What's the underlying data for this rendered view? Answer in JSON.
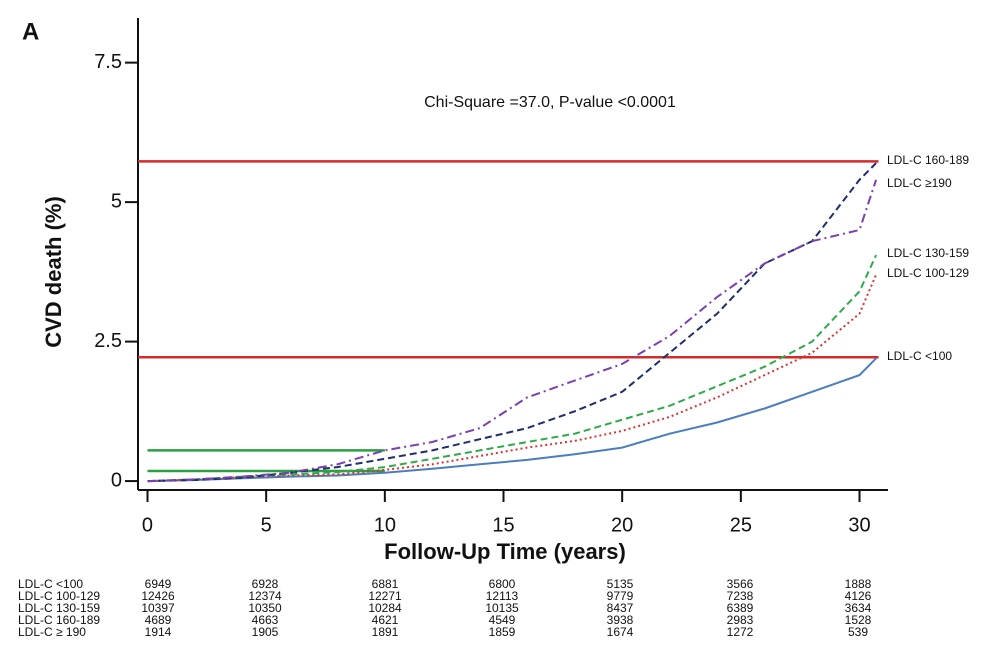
{
  "chart_data": {
    "type": "line",
    "panel_label": "A",
    "annotation": "Chi-Square =37.0, P-value <0.0001",
    "x_label": "Follow-Up Time (years)",
    "y_label": "CVD death (%)",
    "xlim": [
      -0.4,
      31.2
    ],
    "ylim": [
      -0.16,
      8.3
    ],
    "xticks": [
      0,
      5,
      10,
      15,
      20,
      25,
      30
    ],
    "yticks": [
      0,
      2.5,
      5,
      7.5
    ],
    "x": [
      0,
      2,
      4,
      6,
      8,
      10,
      12,
      14,
      16,
      18,
      20,
      22,
      24,
      26,
      28,
      30,
      30.7
    ],
    "series": [
      {
        "name": "LDL-C  <100",
        "color": "#4a7ebf",
        "style": "solid",
        "values": [
          0,
          0.02,
          0.05,
          0.08,
          0.1,
          0.15,
          0.22,
          0.3,
          0.38,
          0.48,
          0.6,
          0.85,
          1.05,
          1.3,
          1.6,
          1.9,
          2.2
        ]
      },
      {
        "name": "LDL-C  100-129",
        "color": "#e03030",
        "style": "dotted",
        "values": [
          0,
          0.03,
          0.07,
          0.1,
          0.12,
          0.2,
          0.3,
          0.45,
          0.6,
          0.72,
          0.9,
          1.15,
          1.5,
          1.9,
          2.3,
          3.0,
          3.7
        ]
      },
      {
        "name": "LDL-C  130-159",
        "color": "#2faa4a",
        "style": "dashed",
        "values": [
          0,
          0.03,
          0.08,
          0.12,
          0.16,
          0.25,
          0.4,
          0.55,
          0.7,
          0.85,
          1.1,
          1.35,
          1.7,
          2.05,
          2.5,
          3.4,
          4.05
        ]
      },
      {
        "name": "LDL-C  160-189",
        "color": "#1f2d6b",
        "style": "dashed",
        "values": [
          0,
          0.02,
          0.06,
          0.15,
          0.25,
          0.4,
          0.55,
          0.75,
          0.95,
          1.25,
          1.6,
          2.3,
          3.0,
          3.9,
          4.3,
          5.4,
          5.7
        ]
      },
      {
        "name": "LDL-C  ≥190",
        "color": "#7a3fb0",
        "style": "dashdot",
        "values": [
          0,
          0.03,
          0.08,
          0.15,
          0.3,
          0.55,
          0.7,
          0.95,
          1.5,
          1.8,
          2.1,
          2.6,
          3.3,
          3.9,
          4.3,
          4.5,
          5.4
        ]
      }
    ],
    "reference_lines": [
      {
        "y": 5.73,
        "x": [
          -0.4,
          30.8
        ],
        "color": "#d42a2a"
      },
      {
        "y": 2.22,
        "x": [
          -0.4,
          30.8
        ],
        "color": "#d42a2a"
      },
      {
        "y": 0.55,
        "x": [
          0,
          10
        ],
        "color": "#2aa040"
      },
      {
        "y": 0.18,
        "x": [
          0,
          10
        ],
        "color": "#2aa040"
      }
    ],
    "risk_table": {
      "rows": [
        {
          "label": "LDL-C <100",
          "values": [
            6949,
            6928,
            6881,
            6800,
            5135,
            3566,
            1888
          ]
        },
        {
          "label": "LDL-C  100-129",
          "values": [
            12426,
            12374,
            12271,
            12113,
            9779,
            7238,
            4126
          ]
        },
        {
          "label": "LDL-C  130-159",
          "values": [
            10397,
            10350,
            10284,
            10135,
            8437,
            6389,
            3634
          ]
        },
        {
          "label": "LDL-C  160-189",
          "values": [
            4689,
            4663,
            4621,
            4549,
            3938,
            2983,
            1528
          ]
        },
        {
          "label": "LDL-C ≥ 190",
          "values": [
            1914,
            1905,
            1891,
            1859,
            1674,
            1272,
            539
          ]
        }
      ]
    }
  }
}
